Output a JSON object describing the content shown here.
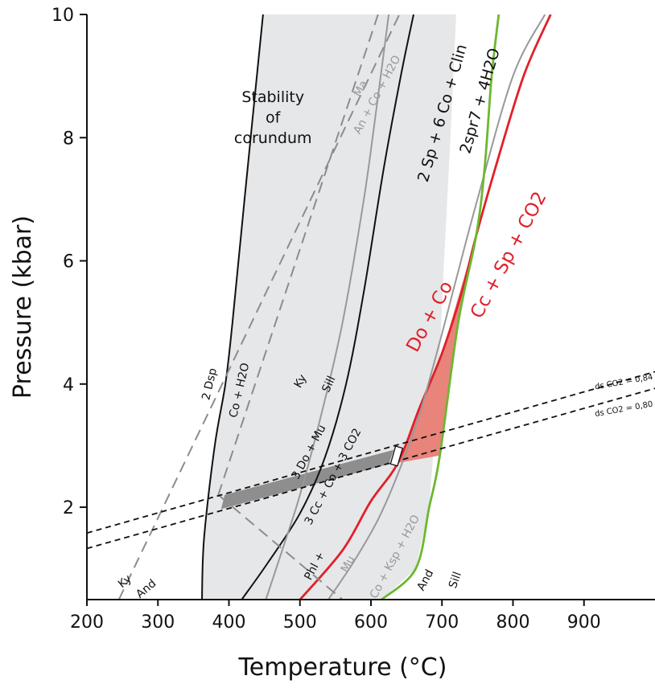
{
  "chart_data": {
    "type": "line",
    "xlabel": "Temperature (°C)",
    "ylabel": "Pressure (kbar)",
    "xlim": [
      200,
      1000
    ],
    "ylim": [
      0.5,
      10
    ],
    "xticks": [
      200,
      300,
      400,
      500,
      600,
      700,
      800,
      900
    ],
    "yticks": [
      2,
      4,
      6,
      8,
      10
    ],
    "grid": false,
    "colors": {
      "reaction_black": "#111111",
      "reaction_gray": "#999999",
      "dashed_gray": "#8c8c8c",
      "red": "#e0202a",
      "green": "#6cb830",
      "field_fill": "#e6e7e9",
      "red_fill": "#e8847a",
      "band_fill": "#8e8e8e"
    },
    "regions": [
      {
        "id": "stability-field",
        "fill": "field_fill",
        "points": [
          [
            362,
            0.5
          ],
          [
            365,
            1.5
          ],
          [
            380,
            3
          ],
          [
            395,
            4
          ],
          [
            405,
            5
          ],
          [
            422,
            7
          ],
          [
            448,
            10
          ],
          [
            720,
            10
          ],
          [
            712,
            8
          ],
          [
            703,
            6
          ],
          [
            695,
            4
          ],
          [
            682,
            2
          ],
          [
            663,
            1
          ],
          [
            615,
            0.5
          ]
        ]
      },
      {
        "id": "red-field",
        "fill": "red_fill",
        "points": [
          [
            638,
            2.72
          ],
          [
            668,
            3.6
          ],
          [
            700,
            4.5
          ],
          [
            748,
            6.4
          ],
          [
            723,
            5.0
          ],
          [
            697,
            2.84
          ]
        ]
      },
      {
        "id": "gray-band",
        "fill": "band_fill",
        "points": [
          [
            394,
            2.2
          ],
          [
            632,
            2.93
          ],
          [
            625,
            2.7
          ],
          [
            389,
            1.97
          ]
        ]
      }
    ],
    "series": [
      {
        "id": "dsp-co",
        "color": "reaction_black",
        "dash": false,
        "points": [
          [
            362,
            0.5
          ],
          [
            365,
            1.5
          ],
          [
            380,
            3
          ],
          [
            395,
            4
          ],
          [
            405,
            5
          ],
          [
            422,
            7
          ],
          [
            448,
            10
          ]
        ]
      },
      {
        "id": "do-mu-phl",
        "color": "reaction_black",
        "dash": false,
        "points": [
          [
            418,
            0.5
          ],
          [
            455,
            1.1
          ],
          [
            500,
            1.9
          ],
          [
            535,
            2.8
          ],
          [
            565,
            4
          ],
          [
            590,
            5.5
          ],
          [
            618,
            7.5
          ],
          [
            642,
            9
          ],
          [
            660,
            10
          ]
        ]
      },
      {
        "id": "ma-an",
        "color": "reaction_gray",
        "dash": false,
        "points": [
          [
            452,
            0.5
          ],
          [
            475,
            1.3
          ],
          [
            500,
            2.2
          ],
          [
            530,
            3.5
          ],
          [
            560,
            5
          ],
          [
            590,
            7
          ],
          [
            608,
            8.5
          ],
          [
            625,
            10
          ]
        ]
      },
      {
        "id": "do-co-cc-sp",
        "color": "red",
        "dash": false,
        "points": [
          [
            500,
            0.5
          ],
          [
            560,
            1.3
          ],
          [
            600,
            2.1
          ],
          [
            638,
            2.72
          ],
          [
            668,
            3.6
          ],
          [
            700,
            4.5
          ],
          [
            728,
            5.5
          ],
          [
            748,
            6.4
          ],
          [
            775,
            7.5
          ],
          [
            815,
            9
          ],
          [
            853,
            10
          ]
        ]
      },
      {
        "id": "mu-ksp",
        "color": "reaction_gray",
        "dash": false,
        "points": [
          [
            540,
            0.5
          ],
          [
            575,
            1.1
          ],
          [
            610,
            1.8
          ],
          [
            640,
            2.6
          ],
          [
            668,
            3.5
          ],
          [
            695,
            4.6
          ],
          [
            720,
            5.7
          ],
          [
            750,
            7
          ],
          [
            800,
            9
          ],
          [
            845,
            10
          ]
        ]
      },
      {
        "id": "sp-clin-spr",
        "color": "green",
        "dash": false,
        "points": [
          [
            615,
            0.5
          ],
          [
            663,
            1
          ],
          [
            682,
            2
          ],
          [
            697,
            2.84
          ],
          [
            723,
            5
          ],
          [
            748,
            6.4
          ],
          [
            760,
            7.5
          ],
          [
            770,
            9
          ],
          [
            780,
            10
          ]
        ]
      },
      {
        "id": "ky-and-sill",
        "color": "dashed_gray",
        "dash": true,
        "points": [
          [
            245,
            0.5
          ],
          [
            640,
            10
          ]
        ]
      },
      {
        "id": "ky-sill",
        "color": "dashed_gray",
        "dash": true,
        "points": [
          [
            385,
            2.2
          ],
          [
            610,
            10
          ]
        ]
      },
      {
        "id": "and-sill",
        "color": "dashed_gray",
        "dash": true,
        "points": [
          [
            385,
            2.2
          ],
          [
            560,
            0.5
          ]
        ]
      },
      {
        "id": "ds-co2-084",
        "color": "reaction_black",
        "dash": true,
        "points": [
          [
            200,
            1.58
          ],
          [
            1000,
            4.2
          ]
        ]
      },
      {
        "id": "ds-co2-080",
        "color": "reaction_black",
        "dash": true,
        "points": [
          [
            200,
            1.33
          ],
          [
            1000,
            3.93
          ]
        ]
      }
    ],
    "annotations": [
      {
        "id": "stability-label",
        "x": 462,
        "y": 8.58,
        "lines": [
          "Stability",
          "of",
          "corundum"
        ],
        "color": "#111111",
        "size": 19,
        "rotate": 0,
        "anchor": "middle"
      },
      {
        "id": "lbl-2dsp",
        "text": "2 Dsp",
        "x": 372,
        "y": 4.0,
        "color": "#111111",
        "size": 14,
        "rotate": -77,
        "anchor": "middle"
      },
      {
        "id": "lbl-coh2o",
        "text": "Co + H2O",
        "x": 414,
        "y": 3.9,
        "color": "#111111",
        "size": 14,
        "rotate": -77,
        "anchor": "middle"
      },
      {
        "id": "lbl-ky-mid",
        "text": "Ky",
        "x": 500,
        "y": 4.05,
        "color": "#111111",
        "size": 14,
        "rotate": -60,
        "anchor": "middle"
      },
      {
        "id": "lbl-sill-mid",
        "text": "Sill",
        "x": 540,
        "y": 4.0,
        "color": "#111111",
        "size": 14,
        "rotate": -65,
        "anchor": "middle"
      },
      {
        "id": "lbl-3do-mu",
        "text": "3 Do + Mu",
        "x": 512,
        "y": 2.9,
        "color": "#111111",
        "size": 14,
        "rotate": -62,
        "anchor": "middle"
      },
      {
        "id": "lbl-ccco",
        "text": "3 Cc + Co + 3 CO2",
        "x": 546,
        "y": 2.5,
        "color": "#111111",
        "size": 14,
        "rotate": -62,
        "anchor": "middle"
      },
      {
        "id": "lbl-phl",
        "text": "Phl +",
        "x": 520,
        "y": 1.05,
        "color": "#111111",
        "size": 14,
        "rotate": -62,
        "anchor": "middle"
      },
      {
        "id": "lbl-ma",
        "text": "Ma",
        "x": 585,
        "y": 8.8,
        "color": "#999999",
        "size": 14,
        "rotate": -62,
        "anchor": "middle"
      },
      {
        "id": "lbl-an-co-h2o",
        "text": "An + Co + H2O",
        "x": 608,
        "y": 8.7,
        "color": "#999999",
        "size": 14,
        "rotate": -62,
        "anchor": "middle"
      },
      {
        "id": "lbl-2sp-6co",
        "text": "2 Sp + 6 Co + Clin",
        "x": 700,
        "y": 8.4,
        "color": "#111111",
        "size": 19,
        "rotate": -74,
        "anchor": "middle"
      },
      {
        "id": "lbl-2spr7",
        "text": "2spr7  + 4H2O",
        "x": 753,
        "y": 8.6,
        "color": "#111111",
        "size": 19,
        "rotate": -74,
        "anchor": "middle"
      },
      {
        "id": "lbl-do-co",
        "text": "Do + Co",
        "x": 682,
        "y": 5.1,
        "color": "#e0202a",
        "size": 23,
        "rotate": -62,
        "anchor": "middle"
      },
      {
        "id": "lbl-cc-sp-co2",
        "text": "Cc + Sp + CO2",
        "x": 793,
        "y": 6.1,
        "color": "#e0202a",
        "size": 23,
        "rotate": -62,
        "anchor": "middle"
      },
      {
        "id": "lbl-mu",
        "text": "Mu",
        "x": 567,
        "y": 1.08,
        "color": "#999999",
        "size": 14,
        "rotate": -62,
        "anchor": "middle"
      },
      {
        "id": "lbl-co-ksp-h2o",
        "text": "Co + Ksp + H2O",
        "x": 633,
        "y": 1.2,
        "color": "#999999",
        "size": 14,
        "rotate": -62,
        "anchor": "middle"
      },
      {
        "id": "lbl-and-right",
        "text": "And",
        "x": 676,
        "y": 0.82,
        "color": "#111111",
        "size": 14,
        "rotate": -62,
        "anchor": "middle"
      },
      {
        "id": "lbl-sill-right",
        "text": "Sill",
        "x": 718,
        "y": 0.82,
        "color": "#111111",
        "size": 14,
        "rotate": -70,
        "anchor": "middle"
      },
      {
        "id": "lbl-ky-left",
        "text": "Ky",
        "x": 253,
        "y": 0.8,
        "color": "#111111",
        "size": 14,
        "rotate": -40,
        "anchor": "middle"
      },
      {
        "id": "lbl-and-left",
        "text": "And",
        "x": 283,
        "y": 0.68,
        "color": "#111111",
        "size": 14,
        "rotate": -40,
        "anchor": "middle"
      },
      {
        "id": "lbl-ds-084",
        "text": "ds CO2 = 0,84",
        "x": 956,
        "y": 4.04,
        "color": "#111111",
        "size": 10,
        "rotate": -10,
        "anchor": "middle",
        "font": "serif"
      },
      {
        "id": "lbl-ds-080",
        "text": "ds CO2 = 0,80",
        "x": 956,
        "y": 3.6,
        "color": "#111111",
        "size": 10,
        "rotate": -10,
        "anchor": "middle",
        "font": "serif"
      }
    ],
    "markers": [
      {
        "id": "white-marker",
        "x": 636,
        "y": 2.83,
        "width_kbar": 0.3,
        "color": "#ffffff",
        "stroke": "#111111"
      }
    ]
  }
}
